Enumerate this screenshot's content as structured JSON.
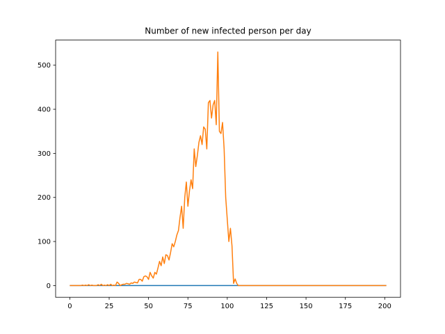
{
  "chart_data": {
    "type": "line",
    "title": "Number of new infected person per day",
    "xlabel": "",
    "ylabel": "",
    "xlim": [
      -9,
      210
    ],
    "ylim": [
      -26.5,
      557
    ],
    "xticks": [
      0,
      25,
      50,
      75,
      100,
      125,
      150,
      175,
      200
    ],
    "yticks": [
      0,
      100,
      200,
      300,
      400,
      500
    ],
    "grid": false,
    "legend": "none",
    "colors": [
      "#1f77b4",
      "#ff7f0e"
    ],
    "series": [
      {
        "x": [
          0,
          201
        ],
        "y": [
          0,
          0
        ]
      },
      {
        "x": [
          0,
          1,
          2,
          3,
          4,
          5,
          6,
          7,
          8,
          9,
          10,
          11,
          12,
          13,
          14,
          15,
          16,
          17,
          18,
          19,
          20,
          21,
          22,
          23,
          24,
          25,
          26,
          27,
          28,
          29,
          30,
          31,
          32,
          33,
          34,
          35,
          36,
          37,
          38,
          39,
          40,
          41,
          42,
          43,
          44,
          45,
          46,
          47,
          48,
          49,
          50,
          51,
          52,
          53,
          54,
          55,
          56,
          57,
          58,
          59,
          60,
          61,
          62,
          63,
          64,
          65,
          66,
          67,
          68,
          69,
          70,
          71,
          72,
          73,
          74,
          75,
          76,
          77,
          78,
          79,
          80,
          81,
          82,
          83,
          84,
          85,
          86,
          87,
          88,
          89,
          90,
          91,
          92,
          93,
          94,
          95,
          96,
          97,
          98,
          99,
          100,
          101,
          102,
          103,
          104,
          105,
          106,
          107,
          108,
          109,
          110,
          201
        ],
        "y": [
          0,
          0,
          0,
          0,
          0,
          0,
          0,
          0,
          1,
          0,
          1,
          0,
          2,
          0,
          1,
          0,
          0,
          0,
          2,
          0,
          3,
          0,
          1,
          0,
          2,
          0,
          3,
          0,
          1,
          0,
          8,
          5,
          0,
          2,
          3,
          3,
          5,
          4,
          3,
          6,
          5,
          8,
          7,
          6,
          14,
          14,
          10,
          20,
          22,
          20,
          14,
          30,
          22,
          17,
          30,
          26,
          40,
          55,
          45,
          65,
          50,
          70,
          68,
          58,
          75,
          95,
          88,
          100,
          115,
          125,
          155,
          180,
          130,
          200,
          235,
          180,
          215,
          240,
          220,
          310,
          270,
          295,
          325,
          340,
          320,
          360,
          355,
          310,
          415,
          420,
          380,
          410,
          420,
          365,
          530,
          350,
          345,
          370,
          310,
          200,
          150,
          100,
          130,
          90,
          5,
          15,
          5,
          0,
          0,
          0,
          0,
          0
        ]
      }
    ]
  }
}
